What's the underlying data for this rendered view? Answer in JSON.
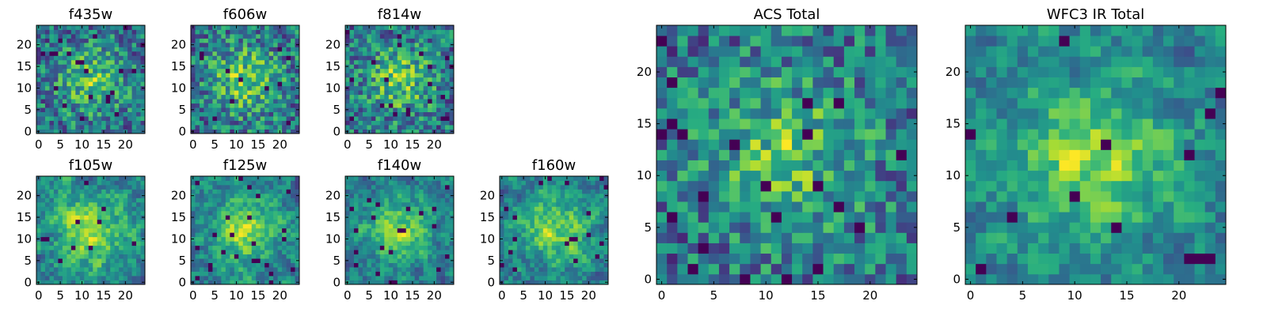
{
  "figure": {
    "background": "#ffffff"
  },
  "chart_data": [
    {
      "type": "heatmap",
      "title": "f435w",
      "size": 25,
      "seed": 11,
      "smooth": 0,
      "colormap": "viridis",
      "xticks": [
        0,
        5,
        10,
        15,
        20
      ],
      "yticks": [
        0,
        5,
        10,
        15,
        20
      ],
      "xlim": [
        -0.5,
        24.5
      ],
      "ylim": [
        -0.5,
        24.5
      ]
    },
    {
      "type": "heatmap",
      "title": "f606w",
      "size": 25,
      "seed": 23,
      "smooth": 0,
      "colormap": "viridis",
      "xticks": [
        0,
        5,
        10,
        15,
        20
      ],
      "yticks": [
        0,
        5,
        10,
        15,
        20
      ],
      "xlim": [
        -0.5,
        24.5
      ],
      "ylim": [
        -0.5,
        24.5
      ]
    },
    {
      "type": "heatmap",
      "title": "f814w",
      "size": 25,
      "seed": 37,
      "smooth": 0,
      "colormap": "viridis",
      "xticks": [
        0,
        5,
        10,
        15,
        20
      ],
      "yticks": [
        0,
        5,
        10,
        15,
        20
      ],
      "xlim": [
        -0.5,
        24.5
      ],
      "ylim": [
        -0.5,
        24.5
      ]
    },
    {
      "type": "heatmap",
      "title": "f105w",
      "size": 25,
      "seed": 41,
      "smooth": 1,
      "colormap": "viridis",
      "xticks": [
        0,
        5,
        10,
        15,
        20
      ],
      "yticks": [
        0,
        5,
        10,
        15,
        20
      ],
      "xlim": [
        -0.5,
        24.5
      ],
      "ylim": [
        -0.5,
        24.5
      ]
    },
    {
      "type": "heatmap",
      "title": "f125w",
      "size": 25,
      "seed": 53,
      "smooth": 1,
      "colormap": "viridis",
      "xticks": [
        0,
        5,
        10,
        15,
        20
      ],
      "yticks": [
        0,
        5,
        10,
        15,
        20
      ],
      "xlim": [
        -0.5,
        24.5
      ],
      "ylim": [
        -0.5,
        24.5
      ]
    },
    {
      "type": "heatmap",
      "title": "f140w",
      "size": 25,
      "seed": 67,
      "smooth": 1,
      "colormap": "viridis",
      "xticks": [
        0,
        5,
        10,
        15,
        20
      ],
      "yticks": [
        0,
        5,
        10,
        15,
        20
      ],
      "xlim": [
        -0.5,
        24.5
      ],
      "ylim": [
        -0.5,
        24.5
      ]
    },
    {
      "type": "heatmap",
      "title": "f160w",
      "size": 25,
      "seed": 79,
      "smooth": 1,
      "colormap": "viridis",
      "xticks": [
        0,
        5,
        10,
        15,
        20
      ],
      "yticks": [
        0,
        5,
        10,
        15,
        20
      ],
      "xlim": [
        -0.5,
        24.5
      ],
      "ylim": [
        -0.5,
        24.5
      ]
    },
    {
      "type": "heatmap",
      "title": "ACS Total",
      "size": 25,
      "seed": 83,
      "smooth": 0,
      "colormap": "viridis",
      "xticks": [
        0,
        5,
        10,
        15,
        20
      ],
      "yticks": [
        0,
        5,
        10,
        15,
        20
      ],
      "xlim": [
        -0.5,
        24.5
      ],
      "ylim": [
        -0.5,
        24.5
      ]
    },
    {
      "type": "heatmap",
      "title": "WFC3 IR Total",
      "size": 25,
      "seed": 97,
      "smooth": 1,
      "colormap": "viridis",
      "xticks": [
        0,
        5,
        10,
        15,
        20
      ],
      "yticks": [
        0,
        5,
        10,
        15,
        20
      ],
      "xlim": [
        -0.5,
        24.5
      ],
      "ylim": [
        -0.5,
        24.5
      ]
    }
  ]
}
